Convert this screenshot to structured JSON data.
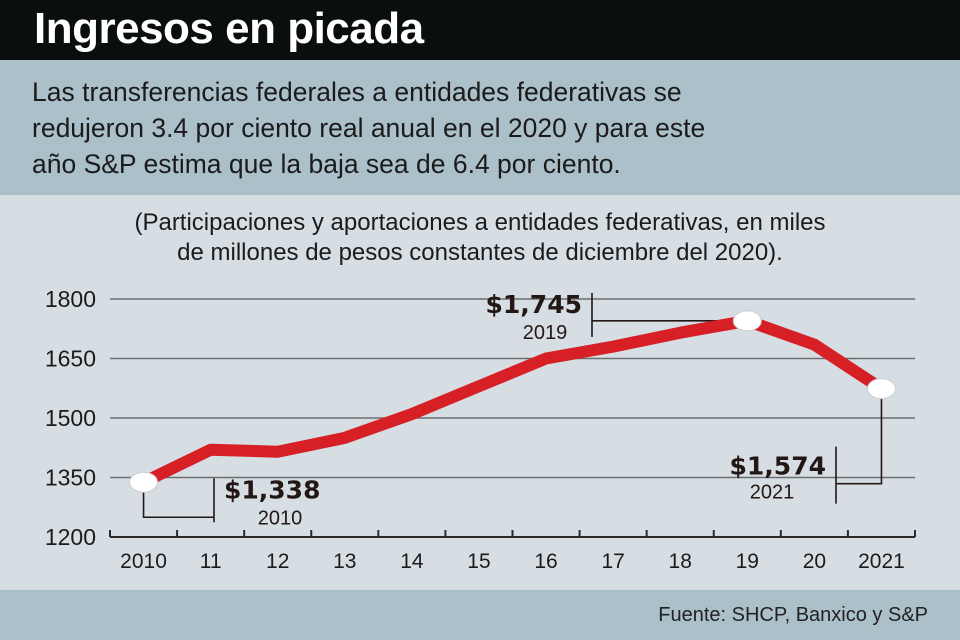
{
  "header": {
    "title": "Ingresos en picada",
    "intro_lines": [
      "Las transferencias federales a entidades federativas se",
      "redujeron 3.4 por ciento real anual en el 2020 y para este",
      "año S&P estima que la baja sea de 6.4 por ciento."
    ]
  },
  "footer": {
    "source": "Fuente: SHCP, Banxico y S&P"
  },
  "colors": {
    "line": "#d71f26",
    "title_bg": "#0a0e0f",
    "band_bg": "#acc0ca",
    "plot_bg": "#d6dee3"
  },
  "chart_data": {
    "type": "line",
    "title": "Ingresos en picada",
    "subtitle_lines": [
      "(Participaciones y aportaciones a entidades federativas, en miles",
      "de millones de pesos constantes de diciembre del 2020)."
    ],
    "xlabel": "",
    "ylabel": "",
    "categories": [
      "2010",
      "11",
      "12",
      "13",
      "14",
      "15",
      "16",
      "17",
      "18",
      "19",
      "20",
      "2021"
    ],
    "series": [
      {
        "name": "Participaciones y aportaciones",
        "values": [
          1338,
          1420,
          1415,
          1450,
          1510,
          1580,
          1650,
          1680,
          1715,
          1745,
          1685,
          1574
        ]
      }
    ],
    "ylim": [
      1200,
      1800
    ],
    "yticks": [
      1800,
      1650,
      1500,
      1350,
      1200
    ],
    "grid": true,
    "annotations": [
      {
        "index": 0,
        "value": "$1,338",
        "year": "2010"
      },
      {
        "index": 9,
        "value": "$1,745",
        "year": "2019"
      },
      {
        "index": 11,
        "value": "$1,574",
        "year": "2021"
      }
    ]
  }
}
